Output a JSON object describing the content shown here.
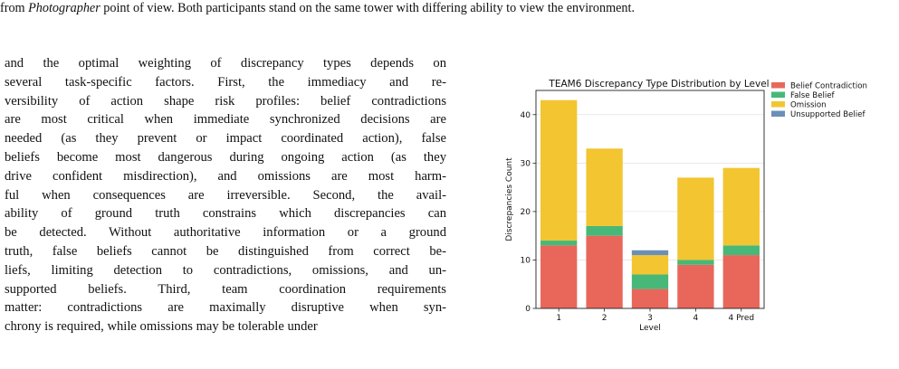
{
  "caption": {
    "prefix": "from ",
    "emph": "Photographer",
    "suffix": " point of view. Both participants stand on the same tower with differing ability to view the environment."
  },
  "body_lines": [
    "and the optimal weighting of discrepancy types depends on",
    "several task-specific factors. First, the immediacy and re-",
    "versibility of action shape risk profiles: belief contradictions",
    "are most critical when immediate synchronized decisions are",
    "needed (as they prevent or impact coordinated action), false",
    "beliefs become most dangerous during ongoing action (as they",
    "drive confident misdirection), and omissions are most harm-",
    "ful when consequences are irreversible. Second, the avail-",
    "ability of ground truth constrains which discrepancies can",
    "be detected. Without authoritative information or a ground",
    "truth, false beliefs cannot be distinguished from correct be-",
    "liefs, limiting detection to contradictions, omissions, and un-",
    "supported beliefs. Third, team coordination requirements",
    "matter: contradictions are maximally disruptive when syn-",
    "chrony is required, while omissions may be tolerable under"
  ],
  "chart_data": {
    "type": "bar",
    "stacked": true,
    "title": "TEAM6 Discrepancy Type Distribution by Level",
    "xlabel": "Level",
    "ylabel": "Discrepancies Count",
    "categories": [
      "1",
      "2",
      "3",
      "4",
      "4 Pred"
    ],
    "ylim": [
      0,
      45
    ],
    "yticks": [
      0,
      10,
      20,
      30,
      40
    ],
    "grid": true,
    "legend_position": "top-right",
    "series": [
      {
        "name": "Belief Contradiction",
        "color": "#e8675a",
        "values": [
          13,
          15,
          4,
          9,
          11
        ]
      },
      {
        "name": "False Belief",
        "color": "#48b878",
        "values": [
          1,
          2,
          3,
          1,
          2
        ]
      },
      {
        "name": "Omission",
        "color": "#f2c531",
        "values": [
          29,
          16,
          4,
          17,
          16
        ]
      },
      {
        "name": "Unsupported Belief",
        "color": "#6a8fb8",
        "values": [
          0,
          0,
          1,
          0,
          0
        ]
      }
    ]
  }
}
